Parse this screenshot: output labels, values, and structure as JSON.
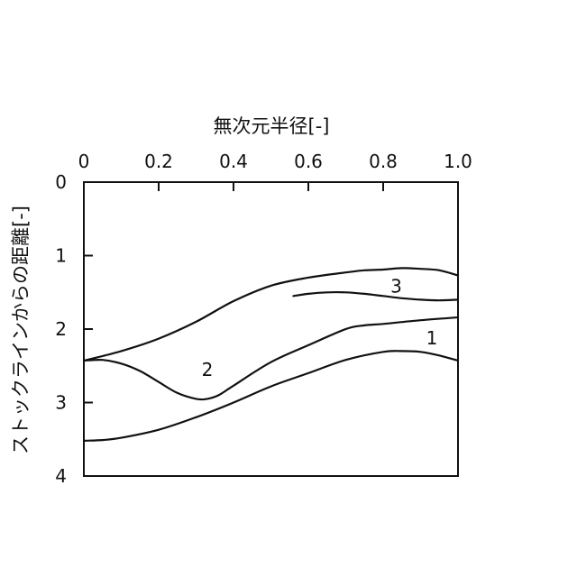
{
  "chart_data": {
    "type": "line",
    "xlabel": "無次元半径[-]",
    "ylabel": "ストックラインからの距離[-]",
    "xlim": [
      0,
      1.0
    ],
    "ylim": [
      0,
      4
    ],
    "y_inverted": true,
    "x_axis_position": "top",
    "x_ticks": [
      "0",
      "0.2",
      "0.4",
      "0.6",
      "0.8",
      "1.0"
    ],
    "y_ticks": [
      "0",
      "1",
      "2",
      "3",
      "4"
    ],
    "x_tick_values": [
      0,
      0.2,
      0.4,
      0.6,
      0.8,
      1.0
    ],
    "y_tick_values": [
      0,
      1,
      2,
      3,
      4
    ],
    "grid": false,
    "legend": "none",
    "series": [
      {
        "label": "1",
        "label_at": [
          0.93,
          2.12
        ],
        "x": [
          0,
          0.05,
          0.1,
          0.2,
          0.3,
          0.4,
          0.5,
          0.6,
          0.7,
          0.8,
          0.85,
          0.9,
          0.95,
          1.0
        ],
        "y": [
          3.52,
          3.51,
          3.48,
          3.37,
          3.2,
          3.0,
          2.78,
          2.6,
          2.42,
          2.31,
          2.3,
          2.31,
          2.36,
          2.43
        ]
      },
      {
        "label": "1",
        "label_at": null,
        "x": [
          0,
          0.1,
          0.2,
          0.3,
          0.4,
          0.5,
          0.6,
          0.7,
          0.75,
          0.8,
          0.85,
          0.9,
          0.95,
          1.0
        ],
        "y": [
          2.43,
          2.3,
          2.13,
          1.9,
          1.62,
          1.41,
          1.3,
          1.23,
          1.2,
          1.19,
          1.17,
          1.18,
          1.2,
          1.27
        ]
      },
      {
        "label": "2",
        "label_at": [
          0.33,
          2.55
        ],
        "x": [
          0,
          0.05,
          0.1,
          0.15,
          0.2,
          0.25,
          0.3,
          0.33,
          0.36,
          0.4,
          0.5,
          0.6,
          0.7,
          0.75,
          0.8,
          0.9,
          1.0
        ],
        "y": [
          2.43,
          2.42,
          2.47,
          2.57,
          2.72,
          2.87,
          2.95,
          2.95,
          2.9,
          2.77,
          2.45,
          2.22,
          2.0,
          1.95,
          1.93,
          1.88,
          1.84
        ]
      },
      {
        "label": "3",
        "label_at": [
          0.835,
          1.42
        ],
        "x": [
          0.56,
          0.6,
          0.65,
          0.7,
          0.75,
          0.8,
          0.85,
          0.9,
          0.95,
          1.0
        ],
        "y": [
          1.55,
          1.52,
          1.5,
          1.5,
          1.52,
          1.55,
          1.58,
          1.6,
          1.61,
          1.6
        ]
      }
    ]
  }
}
